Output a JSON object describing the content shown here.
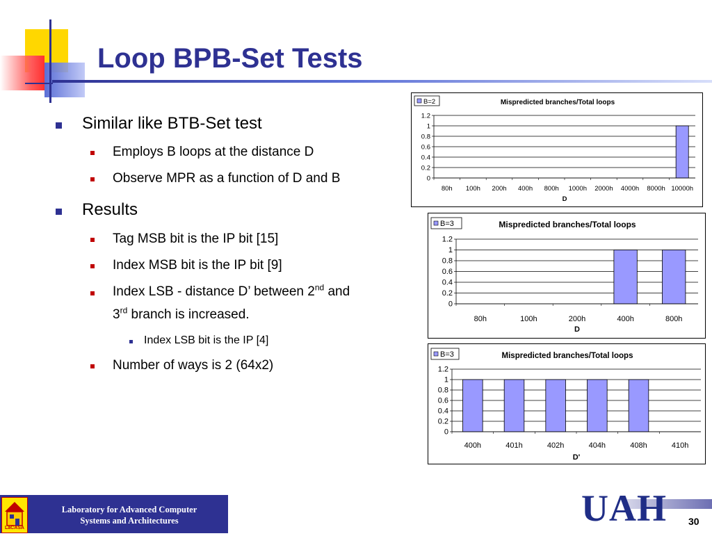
{
  "slide": {
    "title": "Loop BPB-Set Tests",
    "page_number": "30"
  },
  "bullets": {
    "b1": "Similar like BTB-Set test",
    "b1_1": "Employs B loops at the distance D",
    "b1_2": "Observe MPR as a function of D and B",
    "b2": "Results",
    "b2_1": "Tag MSB bit is the IP bit [15]",
    "b2_2": "Index MSB bit is the IP bit [9]",
    "b2_3_pre": "Index LSB - distance D’ between 2",
    "b2_3_sup1": "nd",
    "b2_3_mid": " and",
    "b2_3_line2a": "3",
    "b2_3_sup2": "rd",
    "b2_3_line2b": " branch is increased.",
    "b2_3_1": "Index LSB bit is the IP [4]",
    "b2_4": "Number of ways is 2 (64x2)"
  },
  "footer": {
    "logo_text": "LaCASA",
    "line1": "Laboratory for Advanced Computer",
    "line2": "Systems and Architectures",
    "uah": "UAH"
  },
  "colors": {
    "title": "#2e3192",
    "bar_fill": "#9999ff",
    "bullet_level1": "#2e3192",
    "bullet_level2": "#c00000"
  },
  "chart_data": [
    {
      "type": "bar",
      "title": "Mispredicted branches/Total loops",
      "legend": "B=2",
      "legend_position": "top-left",
      "categories": [
        "80h",
        "100h",
        "200h",
        "400h",
        "800h",
        "1000h",
        "2000h",
        "4000h",
        "8000h",
        "10000h"
      ],
      "values": [
        0,
        0,
        0,
        0,
        0,
        0,
        0,
        0,
        0,
        1
      ],
      "xlabel": "D",
      "ylabel": "",
      "ylim": [
        0,
        1.2
      ],
      "yticks": [
        "0",
        "0.2",
        "0.4",
        "0.6",
        "0.8",
        "1",
        "1.2"
      ],
      "grid": true
    },
    {
      "type": "bar",
      "title": "Mispredicted branches/Total loops",
      "legend": "B=3",
      "legend_position": "top-left",
      "categories": [
        "80h",
        "100h",
        "200h",
        "400h",
        "800h"
      ],
      "values": [
        0,
        0,
        0,
        1,
        1
      ],
      "xlabel": "D",
      "ylabel": "",
      "ylim": [
        0,
        1.2
      ],
      "yticks": [
        "0",
        "0.2",
        "0.4",
        "0.6",
        "0.8",
        "1",
        "1.2"
      ],
      "grid": true
    },
    {
      "type": "bar",
      "title": "Mispredicted branches/Total loops",
      "legend": "B=3",
      "legend_position": "top-left",
      "categories": [
        "400h",
        "401h",
        "402h",
        "404h",
        "408h",
        "410h"
      ],
      "values": [
        1,
        1,
        1,
        1,
        1,
        0
      ],
      "xlabel": "D'",
      "ylabel": "",
      "ylim": [
        0,
        1.2
      ],
      "yticks": [
        "0",
        "0.2",
        "0.4",
        "0.6",
        "0.8",
        "1",
        "1.2"
      ],
      "grid": true
    }
  ]
}
